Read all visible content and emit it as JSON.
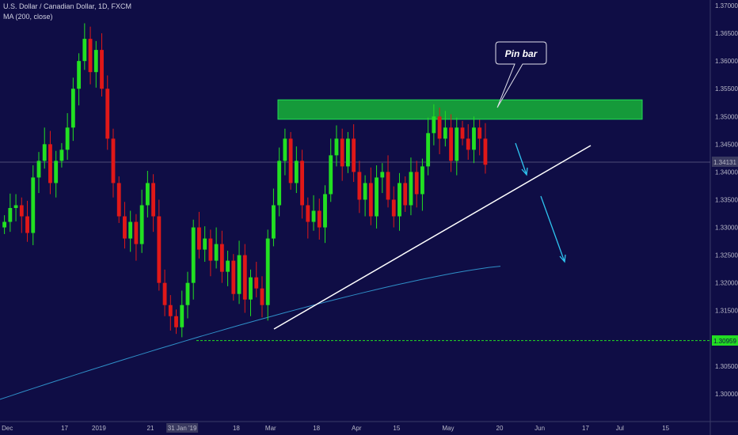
{
  "legend": {
    "symbol_line": "U.S. Dollar / Canadian Dollar, 1D, FXCM",
    "ma_line": "MA (200, close)"
  },
  "colors": {
    "background": "#0f0d45",
    "bull": "#22e022",
    "bear": "#e01818",
    "ma": "#2f8fc8",
    "zone_fill": "#159a3a",
    "zone_border": "#22dd55",
    "trendline": "#ffffff",
    "arrow": "#2ec4f0",
    "support_line": "#22dd22",
    "price_tag": "#3a3a60",
    "support_tag": "#22dd22"
  },
  "annotation": {
    "callout_text": "Pin bar"
  },
  "price_tags": {
    "current": "1.34131",
    "support": "1.30959"
  },
  "chart_data": {
    "type": "candlestick",
    "symbol": "U.S. Dollar / Canadian Dollar",
    "interval": "1D",
    "source": "FXCM",
    "ylim": [
      1.295,
      1.371
    ],
    "y_ticks": [
      "1.37000",
      "1.36500",
      "1.36000",
      "1.35500",
      "1.35000",
      "1.34500",
      "1.34000",
      "1.33500",
      "1.33000",
      "1.32500",
      "1.32000",
      "1.31500",
      "1.31000",
      "1.30500",
      "1.30000"
    ],
    "x_ticks": [
      {
        "label": "Dec",
        "bar": 1
      },
      {
        "label": "17",
        "bar": 11
      },
      {
        "label": "2019",
        "bar": 17
      },
      {
        "label": "21",
        "bar": 26
      },
      {
        "label": "31 Jan '19",
        "bar": 31
      },
      {
        "label": "18",
        "bar": 41
      },
      {
        "label": "Mar",
        "bar": 47
      },
      {
        "label": "18",
        "bar": 55
      },
      {
        "label": "Apr",
        "bar": 62
      },
      {
        "label": "15",
        "bar": 69
      },
      {
        "label": "May",
        "bar": 78
      },
      {
        "label": "20",
        "bar": 87
      },
      {
        "label": "Jun",
        "bar": 94
      },
      {
        "label": "17",
        "bar": 102
      },
      {
        "label": "Jul",
        "bar": 108
      },
      {
        "label": "15",
        "bar": 116
      }
    ],
    "candles_close": [
      1.331,
      1.3335,
      1.334,
      1.332,
      1.329,
      1.339,
      1.342,
      1.345,
      1.338,
      1.342,
      1.344,
      1.348,
      1.355,
      1.36,
      1.364,
      1.358,
      1.362,
      1.355,
      1.346,
      1.338,
      1.332,
      1.328,
      1.331,
      1.327,
      1.334,
      1.338,
      1.332,
      1.32,
      1.316,
      1.314,
      1.312,
      1.316,
      1.32,
      1.33,
      1.326,
      1.328,
      1.324,
      1.327,
      1.322,
      1.324,
      1.318,
      1.325,
      1.317,
      1.321,
      1.319,
      1.316,
      1.328,
      1.334,
      1.342,
      1.346,
      1.338,
      1.342,
      1.334,
      1.331,
      1.333,
      1.33,
      1.336,
      1.343,
      1.346,
      1.341,
      1.346,
      1.34,
      1.335,
      1.338,
      1.332,
      1.339,
      1.34,
      1.335,
      1.332,
      1.338,
      1.334,
      1.34,
      1.336,
      1.341,
      1.347,
      1.35,
      1.346,
      1.348,
      1.342,
      1.348,
      1.346,
      1.344,
      1.348,
      1.346,
      1.3413
    ],
    "moving_average": {
      "name": "MA (200, close)",
      "from": 1.299,
      "to": 1.323
    },
    "resistance_zone": {
      "low": 1.3495,
      "high": 1.353
    },
    "support_level": 1.30959,
    "current_price": 1.34131,
    "trendline": {
      "from": {
        "bar": 44,
        "price": 1.314
      },
      "to": {
        "bar": 93,
        "price": 1.3445
      }
    },
    "annotations": [
      "Pin bar"
    ]
  }
}
